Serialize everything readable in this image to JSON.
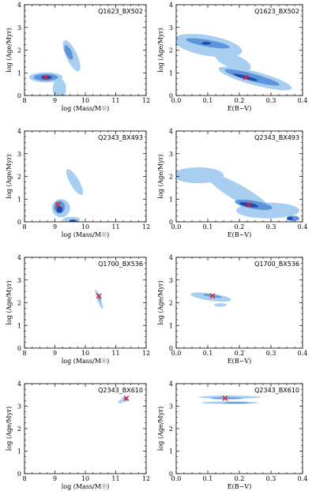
{
  "colors": {
    "outer_contour": "#a9cff0",
    "mid_contour": "#5d95dc",
    "inner_contour": "#1f49a4",
    "best_fit_marker": "#e0202a",
    "axes": "#000000"
  },
  "chart_data": [
    {
      "type": "scatter",
      "label": "Q1623_BX502",
      "xlabel": "log (Mass/M☉)",
      "ylabel": "log (Age/Myr)",
      "xlim": [
        8,
        12
      ],
      "ylim": [
        0,
        4
      ],
      "xticks": [
        "8",
        "9",
        "10",
        "11",
        "12"
      ],
      "yticks": [
        "0",
        "1",
        "2",
        "3",
        "4"
      ],
      "best_fit": {
        "x": 8.7,
        "y": 0.8
      },
      "regions": [
        {
          "level": "outer",
          "x": 8.7,
          "y": 0.8,
          "rx": 0.55,
          "ry": 0.22,
          "angle": 0
        },
        {
          "level": "outer",
          "x": 9.15,
          "y": 0.3,
          "rx": 0.22,
          "ry": 0.45,
          "angle": 0
        },
        {
          "level": "outer",
          "x": 9.55,
          "y": 1.75,
          "rx": 0.18,
          "ry": 0.75,
          "angle": -25
        },
        {
          "level": "mid",
          "x": 8.7,
          "y": 0.8,
          "rx": 0.4,
          "ry": 0.15,
          "angle": 0
        },
        {
          "level": "mid",
          "x": 9.45,
          "y": 1.9,
          "rx": 0.1,
          "ry": 0.35,
          "angle": -25
        },
        {
          "level": "inner",
          "x": 8.72,
          "y": 0.8,
          "rx": 0.18,
          "ry": 0.08,
          "angle": 0
        }
      ]
    },
    {
      "type": "scatter",
      "label": "Q1623_BX502",
      "xlabel": "E(B−V)",
      "ylabel": "log (Age/Myr)",
      "xlim": [
        0,
        0.4
      ],
      "ylim": [
        0,
        4
      ],
      "xticks": [
        "0.0",
        "0.1",
        "0.2",
        "0.3",
        "0.4"
      ],
      "yticks": [
        "0",
        "1",
        "2",
        "3",
        "4"
      ],
      "best_fit": {
        "x": 0.22,
        "y": 0.8
      },
      "regions": [
        {
          "level": "outer",
          "x": 0.1,
          "y": 2.2,
          "rx": 0.11,
          "ry": 0.45,
          "angle": 10
        },
        {
          "level": "outer",
          "x": 0.25,
          "y": 0.75,
          "rx": 0.12,
          "ry": 0.3,
          "angle": 15
        },
        {
          "level": "outer",
          "x": 0.18,
          "y": 1.5,
          "rx": 0.06,
          "ry": 0.3,
          "angle": 20
        },
        {
          "level": "mid",
          "x": 0.1,
          "y": 2.3,
          "rx": 0.07,
          "ry": 0.15,
          "angle": 10
        },
        {
          "level": "mid",
          "x": 0.24,
          "y": 0.8,
          "rx": 0.09,
          "ry": 0.17,
          "angle": 15
        },
        {
          "level": "inner",
          "x": 0.22,
          "y": 0.8,
          "rx": 0.04,
          "ry": 0.07,
          "angle": 15
        },
        {
          "level": "inner",
          "x": 0.095,
          "y": 2.3,
          "rx": 0.015,
          "ry": 0.06,
          "angle": 0
        }
      ]
    },
    {
      "type": "scatter",
      "label": "Q2343_BX493",
      "xlabel": "log (Mass/M☉)",
      "ylabel": "log (Age/Myr)",
      "xlim": [
        8,
        12
      ],
      "ylim": [
        0,
        4
      ],
      "xticks": [
        "8",
        "9",
        "10",
        "11",
        "12"
      ],
      "yticks": [
        "0",
        "1",
        "2",
        "3",
        "4"
      ],
      "best_fit": {
        "x": 9.1,
        "y": 0.75
      },
      "regions": [
        {
          "level": "outer",
          "x": 9.2,
          "y": 0.6,
          "rx": 0.3,
          "ry": 0.4,
          "angle": 0
        },
        {
          "level": "outer",
          "x": 9.65,
          "y": 1.75,
          "rx": 0.15,
          "ry": 0.65,
          "angle": -30
        },
        {
          "level": "outer",
          "x": 9.55,
          "y": 0.1,
          "rx": 0.28,
          "ry": 0.12,
          "angle": 0
        },
        {
          "level": "mid",
          "x": 9.15,
          "y": 0.65,
          "rx": 0.18,
          "ry": 0.28,
          "angle": 0
        },
        {
          "level": "inner",
          "x": 9.15,
          "y": 0.55,
          "rx": 0.1,
          "ry": 0.15,
          "angle": 0
        },
        {
          "level": "inner",
          "x": 9.6,
          "y": 0.05,
          "rx": 0.12,
          "ry": 0.05,
          "angle": 0
        }
      ]
    },
    {
      "type": "scatter",
      "label": "Q2343_BX493",
      "xlabel": "E(B−V)",
      "ylabel": "log (Age/Myr)",
      "xlim": [
        0,
        0.4
      ],
      "ylim": [
        0,
        4
      ],
      "xticks": [
        "0.0",
        "0.1",
        "0.2",
        "0.3",
        "0.4"
      ],
      "yticks": [
        "0",
        "1",
        "2",
        "3",
        "4"
      ],
      "best_fit": {
        "x": 0.23,
        "y": 0.75
      },
      "regions": [
        {
          "level": "outer",
          "x": 0.07,
          "y": 2.05,
          "rx": 0.08,
          "ry": 0.35,
          "angle": 0
        },
        {
          "level": "outer",
          "x": 0.2,
          "y": 1.25,
          "rx": 0.12,
          "ry": 0.35,
          "angle": 30
        },
        {
          "level": "outer",
          "x": 0.29,
          "y": 0.5,
          "rx": 0.1,
          "ry": 0.35,
          "angle": 0
        },
        {
          "level": "mid",
          "x": 0.245,
          "y": 0.75,
          "rx": 0.06,
          "ry": 0.18,
          "angle": 10
        },
        {
          "level": "mid",
          "x": 0.37,
          "y": 0.15,
          "rx": 0.02,
          "ry": 0.12,
          "angle": 0
        },
        {
          "level": "inner",
          "x": 0.23,
          "y": 0.75,
          "rx": 0.03,
          "ry": 0.09,
          "angle": 10
        },
        {
          "level": "inner",
          "x": 0.36,
          "y": 0.15,
          "rx": 0.01,
          "ry": 0.07,
          "angle": 0
        }
      ]
    },
    {
      "type": "scatter",
      "label": "Q1700_BX536",
      "xlabel": "log (Mass/M☉)",
      "ylabel": "log (Age/Myr)",
      "xlim": [
        8,
        12
      ],
      "ylim": [
        0,
        4
      ],
      "xticks": [
        "8",
        "9",
        "10",
        "11",
        "12"
      ],
      "yticks": [
        "0",
        "1",
        "2",
        "3",
        "4"
      ],
      "best_fit": {
        "x": 10.45,
        "y": 2.3
      },
      "regions": [
        {
          "level": "outer",
          "x": 10.45,
          "y": 2.15,
          "rx": 0.06,
          "ry": 0.45,
          "angle": -20
        },
        {
          "level": "mid",
          "x": 10.45,
          "y": 2.25,
          "rx": 0.03,
          "ry": 0.2,
          "angle": -20
        }
      ]
    },
    {
      "type": "scatter",
      "label": "Q1700_BX536",
      "xlabel": "E(B−V)",
      "ylabel": "log (Age/Myr)",
      "xlim": [
        0,
        0.4
      ],
      "ylim": [
        0,
        4
      ],
      "xticks": [
        "0.0",
        "0.1",
        "0.2",
        "0.3",
        "0.4"
      ],
      "yticks": [
        "0",
        "1",
        "2",
        "3",
        "4"
      ],
      "best_fit": {
        "x": 0.115,
        "y": 2.3
      },
      "regions": [
        {
          "level": "outer",
          "x": 0.11,
          "y": 2.25,
          "rx": 0.065,
          "ry": 0.16,
          "angle": 8
        },
        {
          "level": "outer",
          "x": 0.14,
          "y": 1.9,
          "rx": 0.02,
          "ry": 0.08,
          "angle": 0
        },
        {
          "level": "mid",
          "x": 0.115,
          "y": 2.3,
          "rx": 0.03,
          "ry": 0.05,
          "angle": 8
        }
      ]
    },
    {
      "type": "scatter",
      "label": "Q2343_BX610",
      "xlabel": "log (Mass/M☉)",
      "ylabel": "log (Age/Myr)",
      "xlim": [
        8,
        12
      ],
      "ylim": [
        0,
        4
      ],
      "xticks": [
        "8",
        "9",
        "10",
        "11",
        "12"
      ],
      "yticks": [
        "0",
        "1",
        "2",
        "3",
        "4"
      ],
      "best_fit": {
        "x": 11.35,
        "y": 3.35
      },
      "regions": [
        {
          "level": "outer",
          "x": 11.3,
          "y": 3.3,
          "rx": 0.12,
          "ry": 0.12,
          "angle": 0
        },
        {
          "level": "outer",
          "x": 11.15,
          "y": 3.2,
          "rx": 0.07,
          "ry": 0.08,
          "angle": 0
        },
        {
          "level": "mid",
          "x": 11.33,
          "y": 3.33,
          "rx": 0.06,
          "ry": 0.07,
          "angle": 0
        }
      ]
    },
    {
      "type": "scatter",
      "label": "Q2343_BX610",
      "xlabel": "E(B−V)",
      "ylabel": "log (Age/Myr)",
      "xlim": [
        0,
        0.4
      ],
      "ylim": [
        0,
        4
      ],
      "xticks": [
        "0.0",
        "0.1",
        "0.2",
        "0.3",
        "0.4"
      ],
      "yticks": [
        "0",
        "1",
        "2",
        "3",
        "4"
      ],
      "best_fit": {
        "x": 0.155,
        "y": 3.35
      },
      "regions": [
        {
          "level": "outer",
          "x": 0.17,
          "y": 3.4,
          "rx": 0.1,
          "ry": 0.07,
          "angle": 0
        },
        {
          "level": "outer",
          "x": 0.17,
          "y": 3.15,
          "rx": 0.09,
          "ry": 0.06,
          "angle": 0
        },
        {
          "level": "mid",
          "x": 0.16,
          "y": 3.35,
          "rx": 0.05,
          "ry": 0.04,
          "angle": 0
        },
        {
          "level": "mid",
          "x": 0.19,
          "y": 3.15,
          "rx": 0.04,
          "ry": 0.03,
          "angle": 0
        }
      ]
    }
  ]
}
